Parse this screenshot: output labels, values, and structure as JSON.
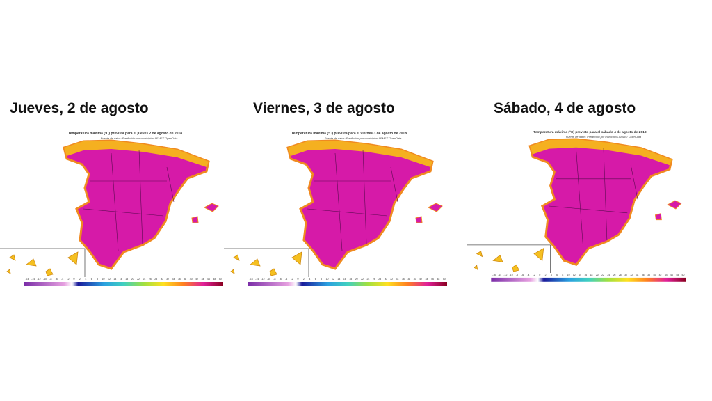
{
  "panels": [
    {
      "heading": "Jueves, 2 de agosto",
      "map_title": "Temperatura máxima (ºC) prevista para el jueves 2 de agosto de 2018",
      "source": "Fuente de datos: Predicción por municipios AEMET OpenData"
    },
    {
      "heading": "Viernes, 3 de agosto",
      "map_title": "Temperatura máxima (ºC) prevista para el viernes 3 de agosto de 2018",
      "source": "Fuente de datos: Predicción por municipios AEMET OpenData"
    },
    {
      "heading": "Sábado, 4 de agosto",
      "map_title": "Temperatura máxima (ºC) prevista para el sábado 4 de agosto de 2018",
      "source": "Fuente de datos: Predicción por municipios AEMET OpenData"
    }
  ],
  "legend_ticks": [
    -16,
    -14,
    -12,
    -10,
    -8,
    -6,
    -4,
    -2,
    0,
    2,
    4,
    6,
    8,
    10,
    12,
    14,
    16,
    18,
    20,
    22,
    24,
    26,
    28,
    30,
    32,
    34,
    36,
    38,
    40,
    42,
    44,
    46,
    48,
    50
  ]
}
